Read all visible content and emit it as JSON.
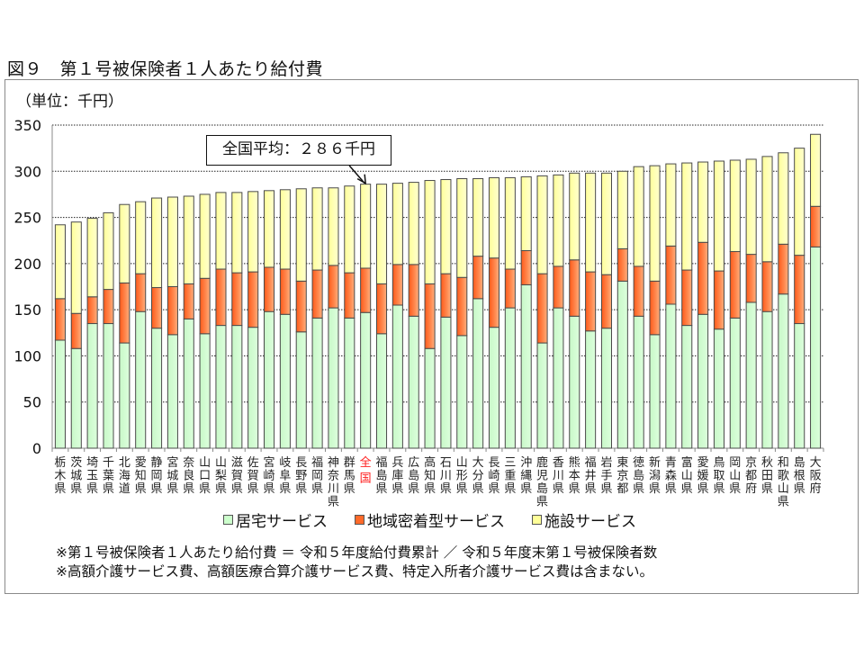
{
  "figure": {
    "title": "図９　第１号被保険者１人あたり給付費",
    "unit_label": "（単位：千円）"
  },
  "callout": {
    "text": "全国平均：２８６千円",
    "target": "全国"
  },
  "legend": [
    {
      "name": "居宅サービス",
      "color": "#ccffcc"
    },
    {
      "name": "地域密着型サービス",
      "color": "#ff6a2a"
    },
    {
      "name": "施設サービス",
      "color": "#ffff99"
    }
  ],
  "notes": [
    "※第１号被保険者１人あたり給付費 ＝ 令和５年度給付費累計 ／ 令和５年度末第１号被保険者数",
    "※高額介護サービス費、高額医療合算介護サービス費、特定入所者介護サービス費は含まない。"
  ],
  "chart_data": {
    "type": "bar",
    "stacked": true,
    "title": "第１号被保険者１人あたり給付費",
    "xlabel": "",
    "ylabel": "（単位：千円）",
    "ylim": [
      0,
      350
    ],
    "yticks": [
      0,
      50,
      100,
      150,
      200,
      250,
      300,
      350
    ],
    "grid": true,
    "legend_position": "bottom",
    "highlight_category": "全国",
    "categories": [
      "栃木県",
      "茨城県",
      "埼玉県",
      "千葉県",
      "北海道",
      "愛知県",
      "静岡県",
      "宮城県",
      "奈良県",
      "山口県",
      "山梨県",
      "滋賀県",
      "佐賀県",
      "宮崎県",
      "岐阜県",
      "長野県",
      "福岡県",
      "神奈川県",
      "群馬県",
      "全国",
      "福島県",
      "兵庫県",
      "広島県",
      "高知県",
      "石川県",
      "山形県",
      "大分県",
      "長崎県",
      "三重県",
      "沖縄県",
      "鹿児島県",
      "香川県",
      "熊本県",
      "福井県",
      "岩手県",
      "東京都",
      "徳島県",
      "新潟県",
      "青森県",
      "富山県",
      "愛媛県",
      "鳥取県",
      "岡山県",
      "京都府",
      "秋田県",
      "和歌山県",
      "島根県",
      "大阪府"
    ],
    "series": [
      {
        "name": "居宅サービス",
        "color": "#ccffcc",
        "values": [
          117,
          108,
          135,
          135,
          114,
          148,
          130,
          123,
          140,
          124,
          133,
          133,
          131,
          148,
          145,
          126,
          141,
          152,
          141,
          147,
          124,
          155,
          143,
          108,
          142,
          122,
          162,
          131,
          152,
          177,
          114,
          152,
          143,
          127,
          130,
          181,
          143,
          123,
          156,
          133,
          145,
          129,
          141,
          158,
          148,
          167,
          135,
          218
        ]
      },
      {
        "name": "地域密着型サービス",
        "color": "#ff6a2a",
        "values": [
          45,
          38,
          29,
          37,
          65,
          41,
          44,
          52,
          38,
          60,
          61,
          57,
          60,
          48,
          49,
          55,
          52,
          46,
          49,
          48,
          54,
          44,
          56,
          70,
          47,
          63,
          46,
          75,
          42,
          37,
          75,
          45,
          61,
          64,
          58,
          35,
          54,
          58,
          63,
          60,
          78,
          63,
          72,
          52,
          54,
          54,
          74,
          44
        ]
      },
      {
        "name": "施設サービス",
        "color": "#ffff99",
        "values": [
          80,
          99,
          85,
          83,
          85,
          78,
          97,
          97,
          95,
          91,
          83,
          87,
          87,
          83,
          86,
          100,
          89,
          84,
          94,
          91,
          108,
          88,
          89,
          112,
          102,
          107,
          84,
          87,
          99,
          80,
          106,
          99,
          94,
          107,
          110,
          84,
          108,
          125,
          89,
          116,
          87,
          119,
          99,
          103,
          114,
          99,
          116,
          78
        ]
      }
    ]
  }
}
